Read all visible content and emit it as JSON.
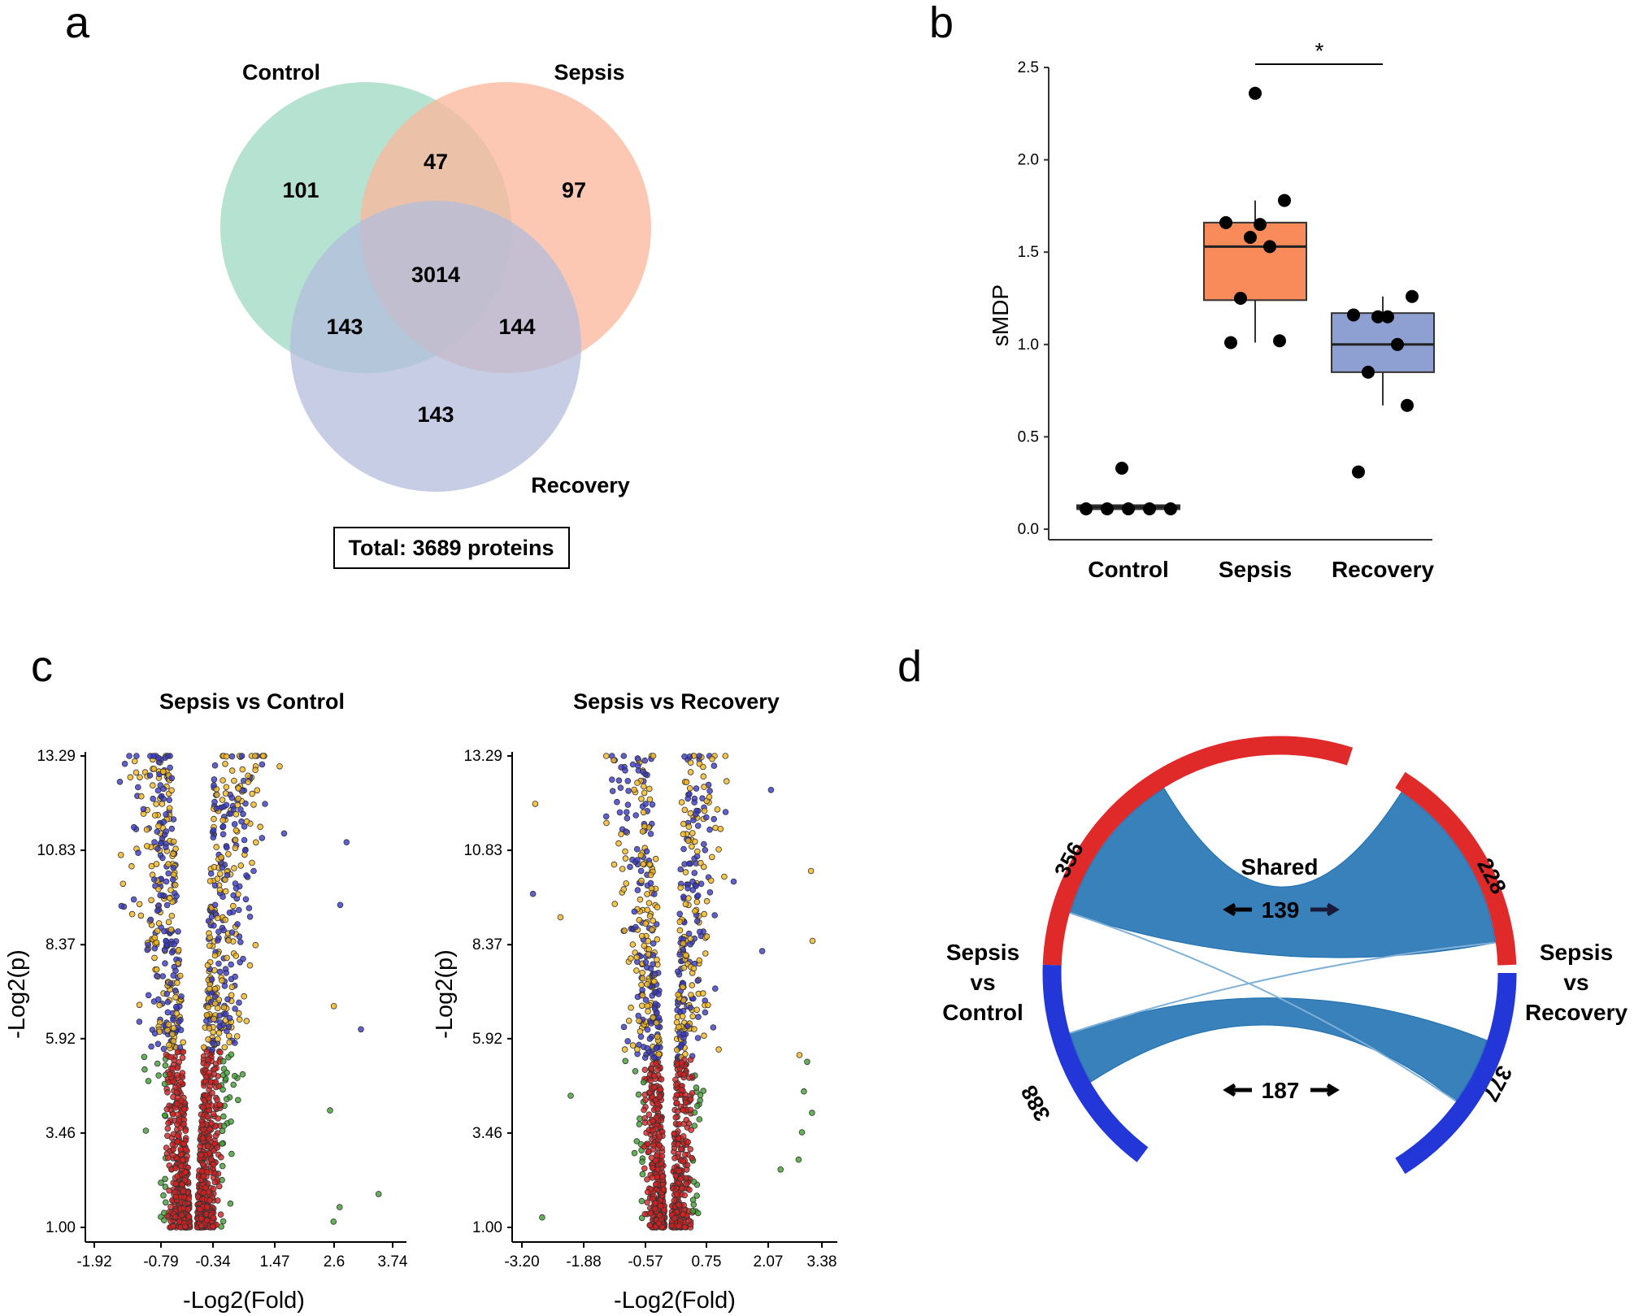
{
  "panels": [
    "a",
    "b",
    "c",
    "d"
  ],
  "chart_data": [
    {
      "id": "venn",
      "type": "venn",
      "sets": [
        "Control",
        "Sepsis",
        "Recovery"
      ],
      "colors": {
        "Control": "#9ed8c2",
        "Sepsis": "#fcb59a",
        "Recovery": "#b3bcdc"
      },
      "regions": {
        "control_only": "101",
        "sepsis_only": "97",
        "recovery_only": "143",
        "control_sepsis": "47",
        "control_recovery": "143",
        "sepsis_recovery": "144",
        "all": "3014"
      },
      "total_label": "Total: 3689 proteins"
    },
    {
      "id": "boxplot",
      "type": "box",
      "ylabel": "sMDP",
      "ylim": [
        0,
        2.5
      ],
      "yticks": [
        "0.0",
        "0.5",
        "1.0",
        "1.5",
        "2.0",
        "2.5"
      ],
      "significance": "*",
      "groups": [
        {
          "name": "Control",
          "color": "#2e4d4a",
          "q1": 0.11,
          "median": 0.12,
          "q3": 0.13,
          "whisker_low": 0.11,
          "whisker_high": 0.13,
          "points": [
            0.11,
            0.11,
            0.11,
            0.11,
            0.11,
            0.33
          ]
        },
        {
          "name": "Sepsis",
          "color": "#f98b5b",
          "q1": 1.24,
          "median": 1.53,
          "q3": 1.66,
          "whisker_low": 1.01,
          "whisker_high": 1.78,
          "points": [
            1.01,
            1.02,
            1.25,
            1.53,
            1.58,
            1.65,
            1.66,
            1.78,
            2.36
          ]
        },
        {
          "name": "Recovery",
          "color": "#8e9fd1",
          "q1": 0.85,
          "median": 1.0,
          "q3": 1.17,
          "whisker_low": 0.67,
          "whisker_high": 1.26,
          "points": [
            0.31,
            0.67,
            0.85,
            1.0,
            1.15,
            1.15,
            1.16,
            1.26
          ]
        }
      ]
    },
    {
      "id": "volcano1",
      "type": "scatter",
      "title": "Sepsis vs Control",
      "xlabel": "-Log2(Fold)",
      "ylabel": "-Log2(p)",
      "xticks": [
        "-1.92",
        "-0.79",
        "-0.34",
        "1.47",
        "2.6",
        "3.74"
      ],
      "yticks": [
        "1.00",
        "3.46",
        "5.92",
        "8.37",
        "10.83",
        "13.29"
      ],
      "ylim": [
        1.0,
        13.29
      ],
      "point_colors": {
        "ns": "#d62020",
        "fold": "#3f9e2f",
        "p": "#f2b51c",
        "both": "#3838c8"
      }
    },
    {
      "id": "volcano2",
      "type": "scatter",
      "title": "Sepsis vs Recovery",
      "xlabel": "-Log2(Fold)",
      "ylabel": "-Log2(p)",
      "xticks": [
        "-3.20",
        "-1.88",
        "-0.57",
        "0.75",
        "2.07",
        "3.38"
      ],
      "yticks": [
        "1.00",
        "3.46",
        "5.92",
        "8.37",
        "10.83",
        "13.29"
      ],
      "ylim": [
        1.0,
        13.29
      ],
      "point_colors": {
        "ns": "#d62020",
        "fold": "#3f9e2f",
        "p": "#f2b51c",
        "both": "#3838c8"
      }
    },
    {
      "id": "chord",
      "type": "chord",
      "left_label": [
        "Sepsis",
        "vs",
        "Control"
      ],
      "right_label": [
        "Sepsis",
        "vs",
        "Recovery"
      ],
      "arc_values": {
        "left_up": "356",
        "left_down": "388",
        "right_up": "228",
        "right_down": "377"
      },
      "shared_title": "Shared",
      "shared_up": "139",
      "shared_down": "187",
      "colors": {
        "up": "#e02a2a",
        "down": "#2337d8",
        "ribbon": "#1d6fb0"
      }
    }
  ]
}
